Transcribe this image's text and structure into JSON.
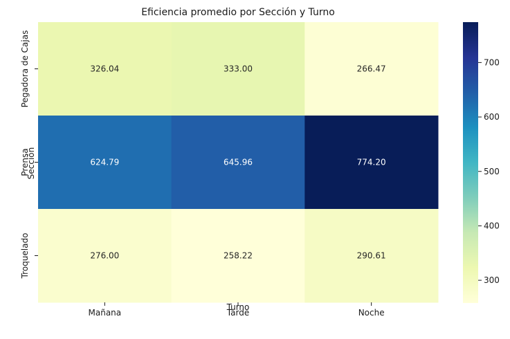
{
  "chart_data": {
    "type": "heatmap",
    "title": "Eficiencia promedio por Sección y Turno",
    "xlabel": "Turno",
    "ylabel": "Sección",
    "x_categories": [
      "Mañana",
      "Tarde",
      "Noche"
    ],
    "y_categories": [
      "Pegadora de Cajas",
      "Prensa",
      "Troquelado"
    ],
    "values": [
      [
        326.04,
        333.0,
        266.47
      ],
      [
        624.79,
        645.96,
        774.2
      ],
      [
        276.0,
        258.22,
        290.61
      ]
    ],
    "value_labels": [
      [
        "326.04",
        "333.00",
        "266.47"
      ],
      [
        "624.79",
        "645.96",
        "774.20"
      ],
      [
        "276.00",
        "258.22",
        "290.61"
      ]
    ],
    "colormap": "YlGnBu",
    "color_range": [
      258.22,
      774.2
    ],
    "colorbar_ticks": [
      "300",
      "400",
      "500",
      "600",
      "700"
    ],
    "colorbar_tick_values": [
      300,
      400,
      500,
      600,
      700
    ],
    "grid": false,
    "legend": "colorbar-right"
  }
}
